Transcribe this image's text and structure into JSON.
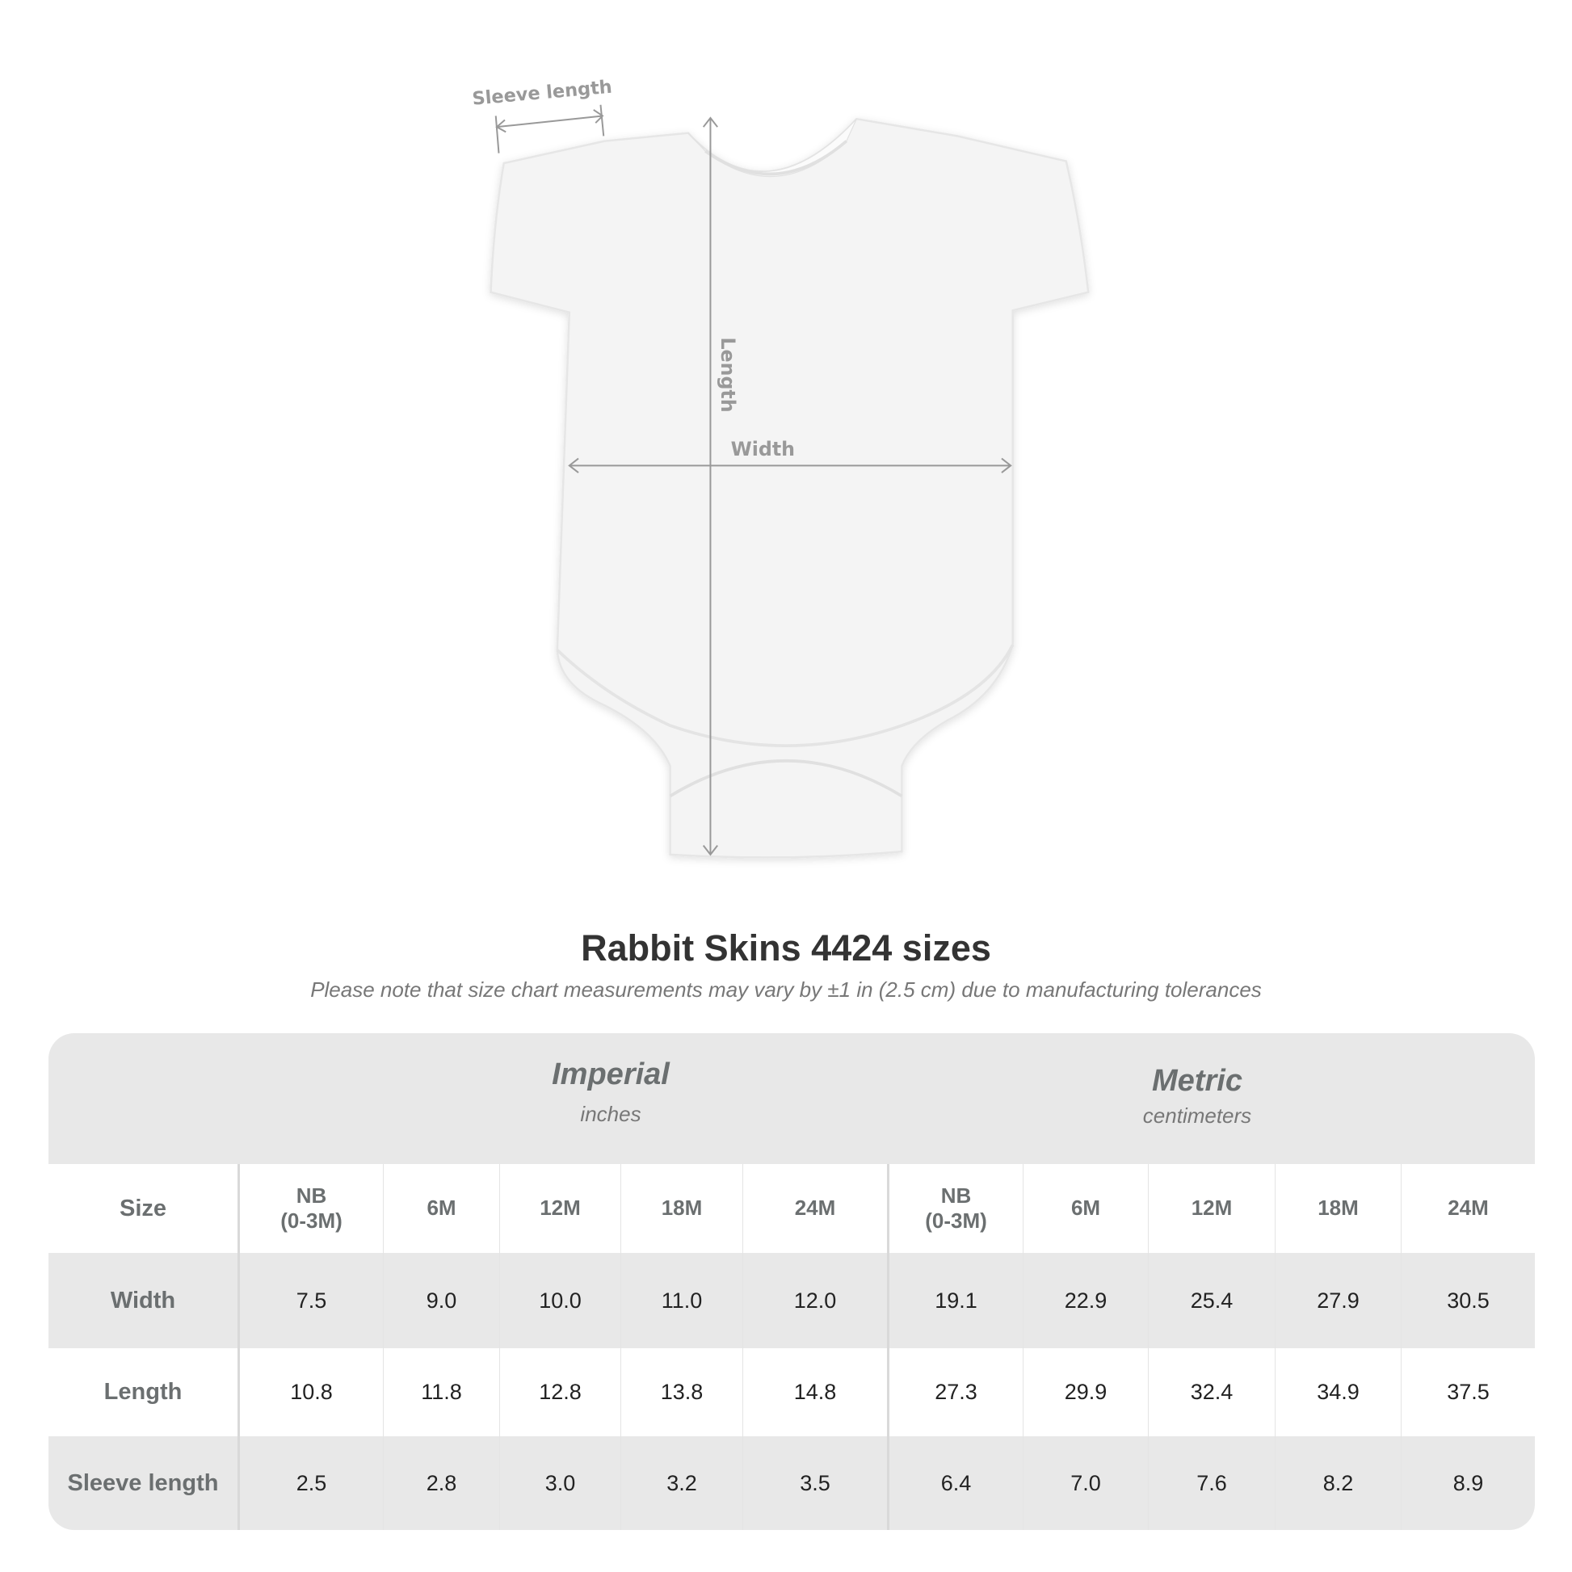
{
  "diagram": {
    "sleeve_label": "Sleeve length",
    "length_label": "Length",
    "width_label": "Width"
  },
  "title": "Rabbit Skins 4424 sizes",
  "subtitle": "Please note that size chart measurements may vary by ±1 in (2.5 cm) due to manufacturing tolerances",
  "table": {
    "imperial": {
      "name": "Imperial",
      "unit": "inches"
    },
    "metric": {
      "name": "Metric",
      "unit": "centimeters"
    },
    "size_label": "Size",
    "sizes": [
      "NB\n(0-3M)",
      "6M",
      "12M",
      "18M",
      "24M",
      "NB\n(0-3M)",
      "6M",
      "12M",
      "18M",
      "24M"
    ],
    "rows": [
      {
        "label": "Width",
        "values": [
          "7.5",
          "9.0",
          "10.0",
          "11.0",
          "12.0",
          "19.1",
          "22.9",
          "25.4",
          "27.9",
          "30.5"
        ]
      },
      {
        "label": "Length",
        "values": [
          "10.8",
          "11.8",
          "12.8",
          "13.8",
          "14.8",
          "27.3",
          "29.9",
          "32.4",
          "34.9",
          "37.5"
        ]
      },
      {
        "label": "Sleeve length",
        "values": [
          "2.5",
          "2.8",
          "3.0",
          "3.2",
          "3.5",
          "6.4",
          "7.0",
          "7.6",
          "8.2",
          "8.9"
        ]
      }
    ]
  },
  "colors": {
    "band": "#e8e8e8",
    "label": "#6b6f70",
    "measure": "#999999"
  }
}
